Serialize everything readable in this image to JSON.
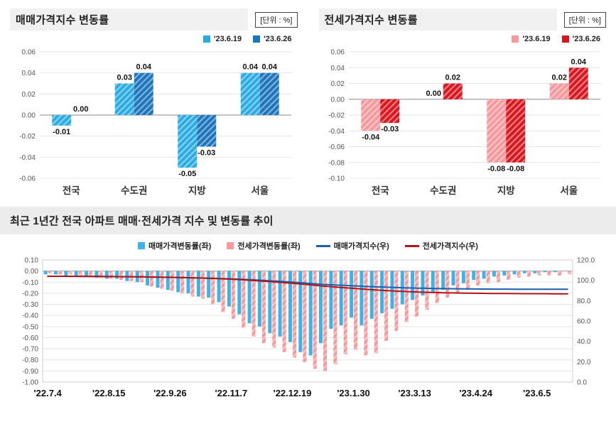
{
  "chart_data": [
    {
      "type": "bar",
      "title": "매매가격지수 변동률",
      "unit_label": "[단위 : %]",
      "categories": [
        "전국",
        "수도권",
        "지방",
        "서울"
      ],
      "series": [
        {
          "name": "'23.6.19",
          "color": "#29ABE2",
          "hatch": true,
          "values": [
            -0.01,
            0.03,
            -0.05,
            0.04
          ]
        },
        {
          "name": "'23.6.26",
          "color": "#1B75BC",
          "hatch": true,
          "values": [
            0.0,
            0.04,
            -0.03,
            0.04
          ]
        }
      ],
      "ylim": [
        -0.06,
        0.06
      ],
      "ytick_step": 0.02,
      "grid": true,
      "legend_position": "top-right"
    },
    {
      "type": "bar",
      "title": "전세가격지수 변동률",
      "unit_label": "[단위 : %]",
      "categories": [
        "전국",
        "수도권",
        "지방",
        "서울"
      ],
      "series": [
        {
          "name": "'23.6.19",
          "color": "#F5999D",
          "hatch": true,
          "values": [
            -0.04,
            0.0,
            -0.08,
            0.02
          ]
        },
        {
          "name": "'23.6.26",
          "color": "#D7171F",
          "hatch": true,
          "values": [
            -0.03,
            0.02,
            -0.08,
            0.04
          ]
        }
      ],
      "ylim": [
        -0.1,
        0.06
      ],
      "ytick_step": 0.02,
      "grid": true,
      "legend_position": "top-right"
    },
    {
      "type": "combo",
      "title": "최근 1년간 전국 아파트 매매·전세가격 지수 및 변동률 추이",
      "x_tick_labels": [
        "'22.7.4",
        "'22.8.15",
        "'22.9.26",
        "'22.11.7",
        "'22.12.19",
        "'23.1.30",
        "'23.3.13",
        "'23.4.24",
        "'23.6.5"
      ],
      "x_tick_every": 6,
      "left_ylim": [
        -1.0,
        0.1
      ],
      "left_tick_step": 0.1,
      "right_ylim": [
        0,
        120
      ],
      "right_tick_step": 20,
      "grid": true,
      "legend_position": "top-center",
      "bar_series": [
        {
          "name": "매매가격변동률(좌)",
          "color": "#3FB3E8",
          "hatch": false,
          "axis": "left",
          "values": [
            -0.03,
            -0.03,
            -0.04,
            -0.04,
            -0.05,
            -0.06,
            -0.07,
            -0.07,
            -0.09,
            -0.1,
            -0.13,
            -0.15,
            -0.17,
            -0.19,
            -0.2,
            -0.23,
            -0.24,
            -0.28,
            -0.32,
            -0.39,
            -0.47,
            -0.5,
            -0.56,
            -0.59,
            -0.64,
            -0.73,
            -0.76,
            -0.65,
            -0.52,
            -0.49,
            -0.42,
            -0.49,
            -0.43,
            -0.38,
            -0.34,
            -0.3,
            -0.26,
            -0.22,
            -0.19,
            -0.17,
            -0.13,
            -0.11,
            -0.08,
            -0.07,
            -0.05,
            -0.04,
            -0.03,
            -0.02,
            -0.02,
            -0.01,
            -0.01,
            0.0
          ]
        },
        {
          "name": "전세가격변동률(좌)",
          "color": "#F5999D",
          "hatch": true,
          "axis": "left",
          "values": [
            -0.02,
            -0.03,
            -0.03,
            -0.04,
            -0.05,
            -0.06,
            -0.07,
            -0.08,
            -0.09,
            -0.1,
            -0.14,
            -0.16,
            -0.18,
            -0.2,
            -0.23,
            -0.25,
            -0.3,
            -0.37,
            -0.43,
            -0.51,
            -0.59,
            -0.65,
            -0.69,
            -0.73,
            -0.78,
            -0.82,
            -0.88,
            -0.9,
            -0.84,
            -0.75,
            -0.71,
            -0.76,
            -0.74,
            -0.63,
            -0.54,
            -0.46,
            -0.41,
            -0.35,
            -0.29,
            -0.24,
            -0.2,
            -0.17,
            -0.13,
            -0.11,
            -0.1,
            -0.08,
            -0.06,
            -0.05,
            -0.04,
            -0.04,
            -0.04,
            -0.03
          ]
        }
      ],
      "line_series": [
        {
          "name": "매매가격지수(우)",
          "color": "#1B5FAE",
          "axis": "right",
          "values": [
            103.97,
            103.94,
            103.9,
            103.85,
            103.8,
            103.74,
            103.67,
            103.59,
            103.5,
            103.4,
            103.26,
            103.11,
            102.93,
            102.73,
            102.52,
            102.29,
            102.04,
            101.75,
            101.42,
            101.01,
            100.53,
            100.02,
            99.44,
            98.84,
            98.18,
            97.44,
            96.67,
            96.01,
            95.48,
            94.99,
            94.56,
            94.07,
            93.64,
            93.26,
            92.92,
            92.62,
            92.36,
            92.14,
            91.95,
            91.78,
            91.65,
            91.54,
            91.46,
            91.39,
            91.34,
            91.3,
            91.27,
            91.25,
            91.23,
            91.22,
            91.21,
            91.21
          ]
        },
        {
          "name": "전세가격지수(우)",
          "color": "#AF1419",
          "axis": "right",
          "values": [
            103.98,
            103.95,
            103.92,
            103.88,
            103.82,
            103.76,
            103.69,
            103.6,
            103.51,
            103.41,
            103.26,
            103.1,
            102.91,
            102.7,
            102.46,
            102.2,
            101.89,
            101.51,
            101.06,
            100.54,
            99.93,
            99.27,
            98.56,
            97.82,
            97.03,
            96.2,
            95.31,
            94.41,
            93.57,
            92.82,
            92.12,
            91.36,
            90.63,
            90.01,
            89.48,
            89.03,
            88.62,
            88.28,
            88.0,
            87.76,
            87.56,
            87.4,
            87.27,
            87.16,
            87.06,
            86.98,
            86.92,
            86.87,
            86.83,
            86.79,
            86.75,
            86.72
          ]
        }
      ]
    }
  ]
}
